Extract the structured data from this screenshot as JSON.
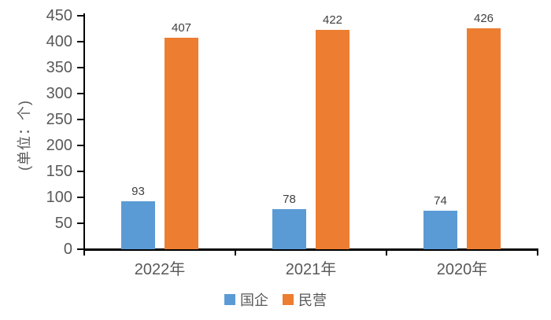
{
  "chart_data": {
    "type": "bar",
    "title": "",
    "xlabel": "",
    "ylabel": "(单位：个)",
    "categories": [
      "2022年",
      "2021年",
      "2020年"
    ],
    "series": [
      {
        "name": "国企",
        "color": "#5B9BD5",
        "values": [
          93,
          78,
          74
        ]
      },
      {
        "name": "民营",
        "color": "#ED7D31",
        "values": [
          407,
          422,
          426
        ]
      }
    ],
    "ylim": [
      0,
      450
    ],
    "ytick_step": 50,
    "ytick_labels": [
      "450",
      "400",
      "350",
      "300",
      "250",
      "200",
      "150",
      "100",
      "50",
      "0"
    ],
    "grid": false,
    "legend_position": "bottom",
    "data_labels": true,
    "colors": {
      "axis": "#000000",
      "tick_label": "#595959",
      "data_label": "#404040",
      "background": "#ffffff"
    }
  }
}
